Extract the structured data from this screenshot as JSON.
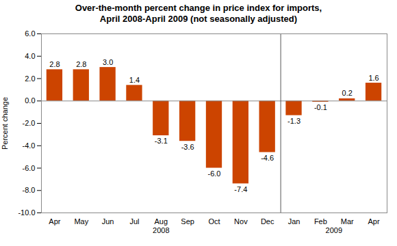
{
  "chart_data": {
    "type": "bar",
    "title": "Over-the-month percent change in price index for imports,\nApril 2008-April 2009 (not seasonally adjusted)",
    "categories": [
      "Apr",
      "May",
      "Jun",
      "Jul",
      "Aug",
      "Sep",
      "Oct",
      "Nov",
      "Dec",
      "Jan",
      "Feb",
      "Mar",
      "Apr"
    ],
    "values": [
      2.8,
      2.8,
      3.0,
      1.4,
      -3.1,
      -3.6,
      -6.0,
      -7.4,
      -4.6,
      -1.3,
      -0.1,
      0.2,
      1.6
    ],
    "value_labels": [
      "2.8",
      "2.8",
      "3.0",
      "1.4",
      "-3.1",
      "-3.6",
      "-6.0",
      "-7.4",
      "-4.6",
      "-1.3",
      "-0.1",
      "0.2",
      "1.6"
    ],
    "color": "#CC4400",
    "ylabel": "Percent change",
    "ylim": [
      -10.0,
      6.0
    ],
    "yticks": [
      {
        "value": -10,
        "label": "-10.0"
      },
      {
        "value": -8,
        "label": "-8.0"
      },
      {
        "value": -6,
        "label": "-6.0"
      },
      {
        "value": -4,
        "label": "-4.0"
      },
      {
        "value": -2,
        "label": "-2.0"
      },
      {
        "value": 0,
        "label": "0.0"
      },
      {
        "value": 2,
        "label": "2.0"
      },
      {
        "value": 4,
        "label": "4.0"
      },
      {
        "value": 6,
        "label": "6.0"
      }
    ],
    "data_labels": true,
    "grid": false,
    "annotations": [
      {
        "text": "2008",
        "from": 0,
        "to": 8
      },
      {
        "text": "2009",
        "from": 9,
        "to": 12
      }
    ]
  }
}
